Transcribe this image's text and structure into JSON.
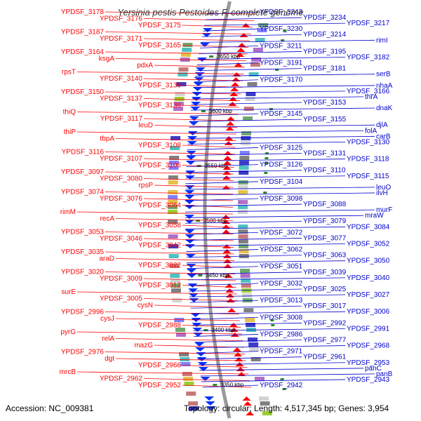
{
  "title": "Yersinia pestis Pestoides F, complete genome",
  "accession": "Accession: NC_009381",
  "topology": "Topology: circular; Length: 4,517,345 bp; Genes: 3,954",
  "colors": {
    "left_labels": "#ff0000",
    "right_labels": "#0000cc",
    "backbone": "#999999",
    "scale_tick": "#2a8a2a"
  },
  "scale_labels": [
    "3650 kbp",
    "3600 kbp",
    "3550 kbp",
    "3500 kbp",
    "3450 kbp",
    "3400 kbp",
    "3350 kbp"
  ],
  "left_labels": [
    "YPDSF_3178",
    "YPDSF_3176",
    "YPDSF_3175",
    "YPDSF_3187",
    "YPDSF_3171",
    "YPDSF_3165",
    "YPDSF_3164",
    "ksgA",
    "pdxA",
    "rpsT",
    "YPDSF_3140",
    "YPDSF_3139",
    "YPDSF_3150",
    "YPDSF_3137",
    "YPDSF_3136",
    "thiQ",
    "YPDSF_3117",
    "leuD",
    "thiP",
    "tbpA",
    "YPDSF_3108",
    "YPDSF_3116",
    "YPDSF_3107",
    "YPDSF_3106",
    "YPDSF_3097",
    "YPDSF_3080",
    "rpsP",
    "YPDSF_3074",
    "YPDSF_3076",
    "YPDSF_3064",
    "rimM",
    "recA",
    "YPDSF_3058",
    "YPDSF_3053",
    "YPDSF_3046",
    "YPDSF_3042",
    "YPDSF_3035",
    "araD",
    "YPDSF_3022",
    "YPDSF_3020",
    "YPDSF_3009",
    "YPDSF_3012",
    "surE",
    "YPDSF_3005",
    "cysN",
    "YPDSF_2996",
    "cysJ",
    "YPDSF_2988",
    "pyrG",
    "relA",
    "mazG",
    "YPDSF_2976",
    "dgt",
    "YPDSF_2966",
    "mrcB",
    "YPDSF_2962",
    "YPDSF_2952"
  ],
  "right_labels": [
    "YPDSF_3243",
    "YPDSF_3234",
    "YPDSF_3217",
    "YPDSF_3230",
    "YPDSF_3214",
    "rimI",
    "YPDSF_3211",
    "YPDSF_3195",
    "YPDSF_3182",
    "YPDSF_3191",
    "YPDSF_3181",
    "serB",
    "YPDSF_3170",
    "nhaA",
    "YPDSF_3166",
    "thrA",
    "YPDSF_3153",
    "dnaK",
    "YPDSF_3145",
    "YPDSF_3155",
    "djlA",
    "folA",
    "carB",
    "YPDSF_3130",
    "YPDSF_3125",
    "YPDSF_3131",
    "YPDSF_3118",
    "YPDSF_3126",
    "YPDSF_3110",
    "YPDSF_3115",
    "YPDSF_3104",
    "leuO",
    "ilvH",
    "YPDSF_3098",
    "YPDSF_3088",
    "murF",
    "mraW",
    "YPDSF_3079",
    "YPDSF_3084",
    "YPDSF_3072",
    "YPDSF_3077",
    "YPDSF_3052",
    "YPDSF_3062",
    "YPDSF_3063",
    "YPDSF_3050",
    "YPDSF_3051",
    "YPDSF_3039",
    "YPDSF_3040",
    "YPDSF_3032",
    "YPDSF_3025",
    "YPDSF_3027",
    "YPDSF_3013",
    "YPDSF_3017",
    "YPDSF_3006",
    "YPDSF_3008",
    "YPDSF_2992",
    "YPDSF_2991",
    "YPDSF_2986",
    "YPDSF_2977",
    "YPDSF_2968",
    "YPDSF_2971",
    "YPDSF_2961",
    "YPDSF_2953",
    "panC",
    "panB",
    "YPDSF_2943",
    "YPDSF_2942"
  ]
}
